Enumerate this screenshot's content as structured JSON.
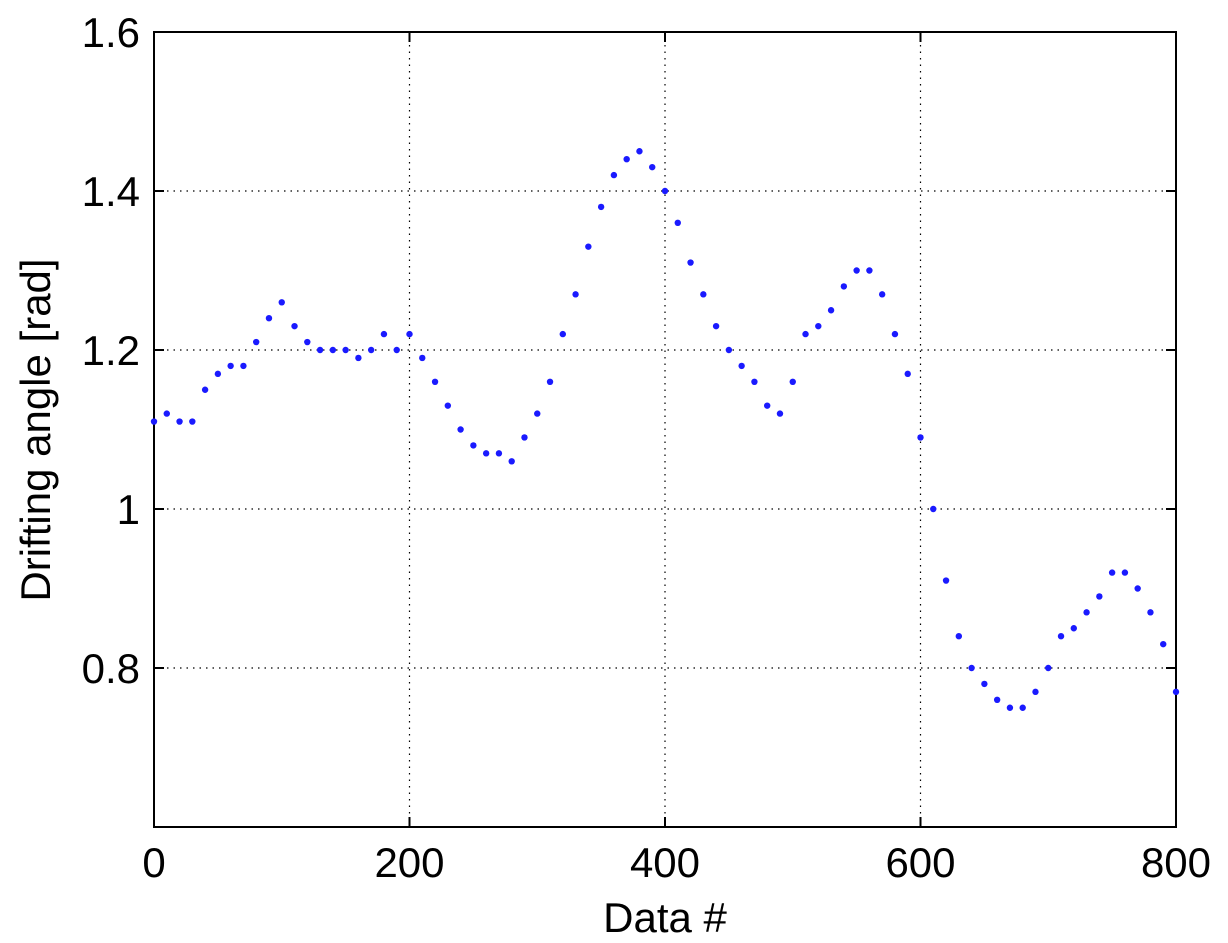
{
  "chart_data": {
    "type": "scatter",
    "title": "",
    "xlabel": "Data #",
    "ylabel": "Drifting angle [rad]",
    "xlim": [
      0,
      800
    ],
    "ylim": [
      0.6,
      1.6
    ],
    "xticks": [
      0,
      200,
      400,
      600,
      800
    ],
    "yticks": [
      0.8,
      1.0,
      1.2,
      1.4,
      1.6
    ],
    "xtick_labels": [
      "0",
      "200",
      "400",
      "600",
      "800"
    ],
    "ytick_labels": [
      "0.8",
      "1",
      "1.2",
      "1.4",
      "1.6"
    ],
    "grid": true,
    "marker_color": "#1a1aff",
    "series": [
      {
        "x": [
          0,
          10,
          20,
          30,
          40,
          50,
          60,
          70,
          80,
          90,
          100,
          110,
          120,
          130,
          140,
          150,
          160,
          170,
          180,
          190,
          200,
          210,
          220,
          230,
          240,
          250,
          260,
          270,
          280,
          290,
          300,
          310,
          320,
          330,
          340,
          350,
          360,
          370,
          380,
          390,
          400,
          410,
          420,
          430,
          440,
          450,
          460,
          470,
          480,
          490,
          500,
          510,
          520,
          530,
          540,
          550,
          560,
          570,
          580,
          590,
          600,
          610,
          620,
          630,
          640,
          650,
          660,
          670,
          680,
          690,
          700,
          710,
          720,
          730,
          740,
          750,
          760,
          770,
          780,
          790,
          800
        ],
        "y": [
          1.11,
          1.12,
          1.11,
          1.11,
          1.15,
          1.17,
          1.18,
          1.18,
          1.21,
          1.24,
          1.26,
          1.23,
          1.21,
          1.2,
          1.2,
          1.2,
          1.19,
          1.2,
          1.22,
          1.2,
          1.22,
          1.19,
          1.16,
          1.13,
          1.1,
          1.08,
          1.07,
          1.07,
          1.06,
          1.09,
          1.12,
          1.16,
          1.22,
          1.27,
          1.33,
          1.38,
          1.42,
          1.44,
          1.45,
          1.43,
          1.4,
          1.36,
          1.31,
          1.27,
          1.23,
          1.2,
          1.18,
          1.16,
          1.13,
          1.12,
          1.16,
          1.22,
          1.23,
          1.25,
          1.28,
          1.3,
          1.3,
          1.27,
          1.22,
          1.17,
          1.09,
          1.0,
          0.91,
          0.84,
          0.8,
          0.78,
          0.76,
          0.75,
          0.75,
          0.77,
          0.8,
          0.84,
          0.85,
          0.87,
          0.89,
          0.92,
          0.92,
          0.9,
          0.87,
          0.83,
          0.77
        ]
      }
    ]
  }
}
